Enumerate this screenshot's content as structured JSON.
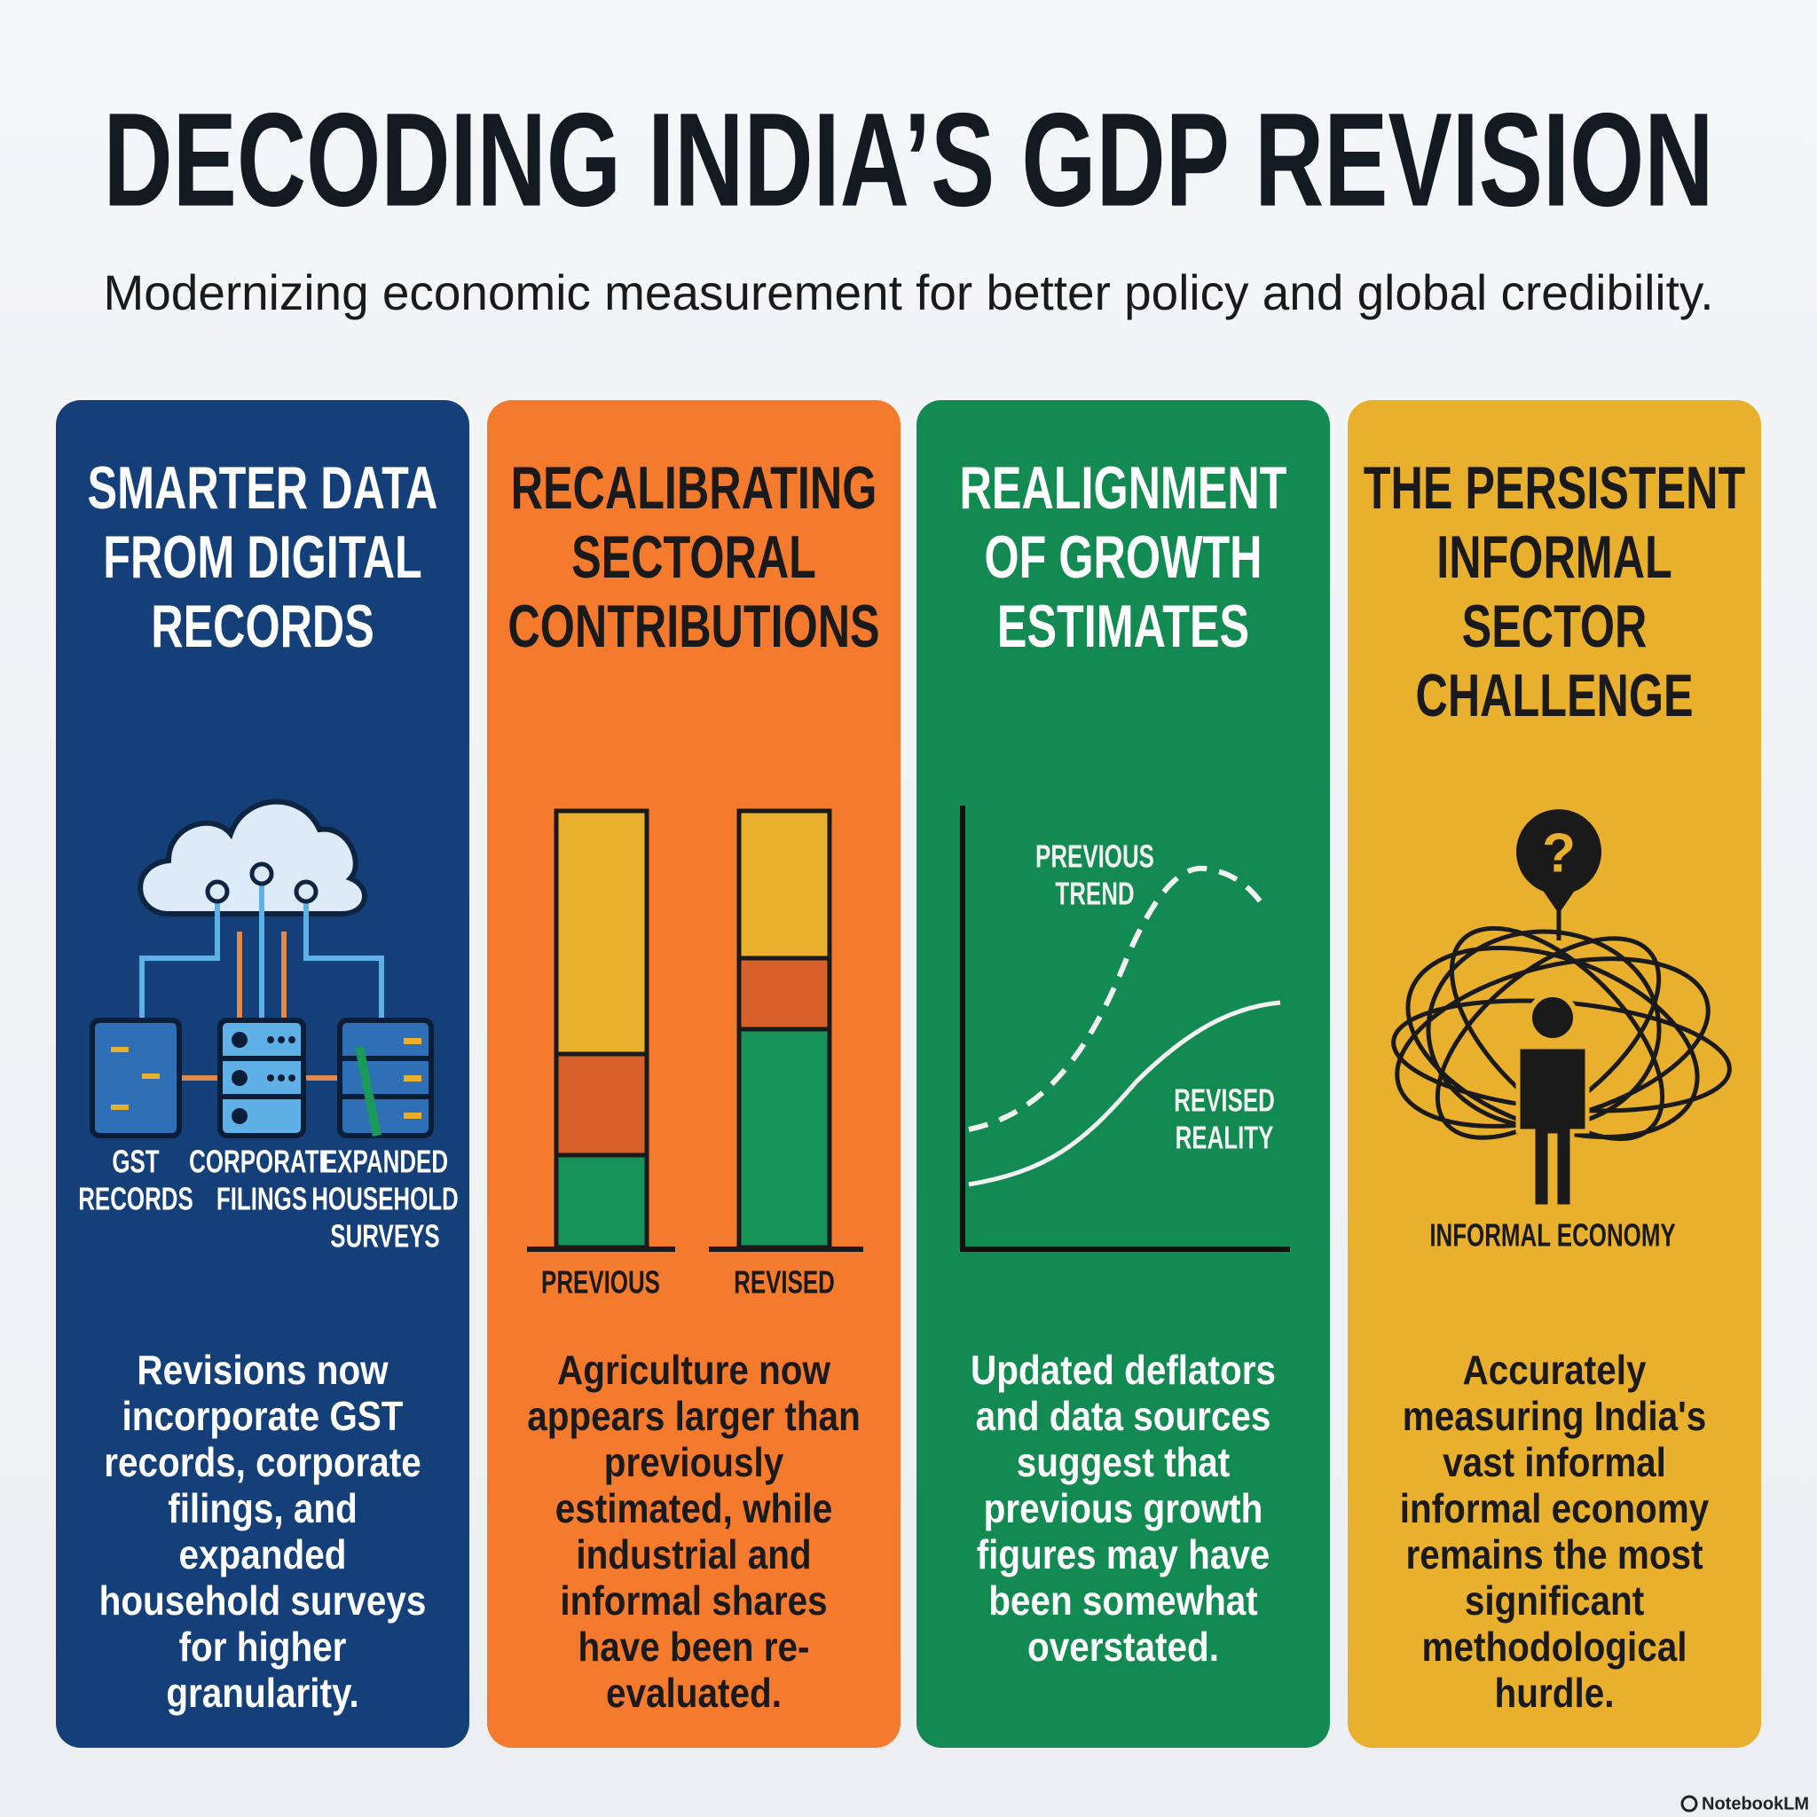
{
  "header": {
    "title": "DECODING INDIA’S GDP REVISION",
    "subtitle": "Modernizing economic measurement for better policy and global credibility."
  },
  "panels": [
    {
      "title": [
        "SMARTER DATA",
        "FROM DIGITAL",
        "RECORDS"
      ],
      "labels": [
        [
          "GST",
          "RECORDS"
        ],
        [
          "CORPORATE",
          "FILINGS"
        ],
        [
          "EXPANDED",
          "HOUSEHOLD",
          "SURVEYS"
        ]
      ],
      "body": [
        "Revisions now",
        "incorporate GST",
        "records, corporate",
        "filings, and",
        "expanded",
        "household surveys",
        "for higher",
        "granularity."
      ]
    },
    {
      "title": [
        "RECALIBRATING",
        "SECTORAL",
        "CONTRIBUTIONS"
      ],
      "labels": [
        [
          "PREVIOUS"
        ],
        [
          "REVISED"
        ]
      ],
      "body": [
        "Agriculture now",
        "appears larger than",
        "previously",
        "estimated, while",
        "industrial and",
        "informal shares",
        "have been re-",
        "evaluated."
      ]
    },
    {
      "title": [
        "REALIGNMENT",
        "OF GROWTH",
        "ESTIMATES"
      ],
      "labels": [
        [
          "PREVIOUS",
          "TREND"
        ],
        [
          "REVISED",
          "REALITY"
        ]
      ],
      "body": [
        "Updated deflators",
        "and data sources",
        "suggest that",
        "previous growth",
        "figures may have",
        "been somewhat",
        "overstated."
      ]
    },
    {
      "title": [
        "THE PERSISTENT",
        "INFORMAL",
        "SECTOR",
        "CHALLENGE"
      ],
      "question_mark": "?",
      "labels": [
        [
          "INFORMAL ECONOMY"
        ]
      ],
      "body": [
        "Accurately",
        "measuring India's",
        "vast informal",
        "informal economy",
        "remains the most",
        "significant",
        "methodological",
        "hurdle."
      ]
    }
  ],
  "footer": "NotebookLM"
}
